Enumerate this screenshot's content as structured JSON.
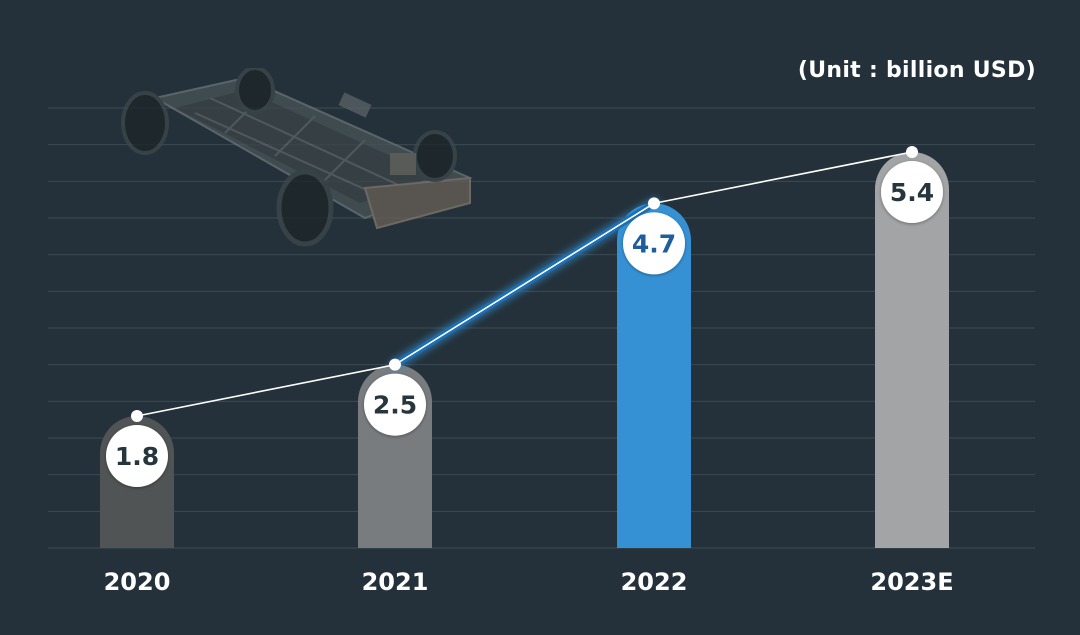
{
  "unit_label": "(Unit : billion USD)",
  "illustration": {
    "icon": "ev-chassis-icon"
  },
  "colors": {
    "background": "#24313a",
    "grid": "#3b4a53",
    "highlight": "#3691d4",
    "highlight_text": "#1f5e9c",
    "label_text": "#27353d"
  },
  "chart_data": {
    "type": "bar",
    "categories": [
      "2020",
      "2021",
      "2022",
      "2023E"
    ],
    "values": [
      1.8,
      2.5,
      4.7,
      5.4
    ],
    "data_labels": [
      "1.8",
      "2.5",
      "4.7",
      "5.4"
    ],
    "bar_colors": [
      "#515455",
      "#797c7e",
      "#3691d4",
      "#a3a4a5"
    ],
    "highlight_index": 2,
    "trend_line": true,
    "ylim": [
      0,
      6
    ],
    "grid": true,
    "title": "",
    "xlabel": "",
    "ylabel": ""
  }
}
